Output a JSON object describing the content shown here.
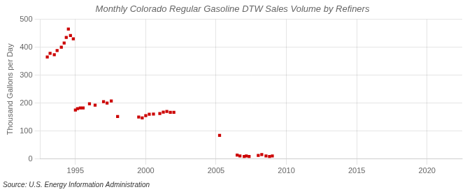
{
  "chart_data": {
    "type": "scatter",
    "title": "Monthly Colorado Regular Gasoline DTW Sales Volume by Refiners",
    "ylabel": "Thousand Gallons per Day",
    "source": "Source: U.S. Energy Information Administration",
    "color": "#cc0000",
    "marker": "square",
    "grid": true,
    "xlim": [
      1992.5,
      2022.5
    ],
    "ylim": [
      0,
      500
    ],
    "xticks": [
      1995,
      2000,
      2005,
      2010,
      2015,
      2020
    ],
    "yticks": [
      0,
      100,
      200,
      300,
      400,
      500
    ],
    "x": [
      1993.0,
      1993.2,
      1993.5,
      1993.7,
      1994.0,
      1994.2,
      1994.35,
      1994.5,
      1994.65,
      1994.85,
      1995.0,
      1995.15,
      1995.35,
      1995.55,
      1996.0,
      1996.4,
      1997.0,
      1997.25,
      1997.55,
      1998.0,
      1999.5,
      1999.75,
      2000.0,
      2000.25,
      2000.55,
      2001.0,
      2001.25,
      2001.5,
      2001.75,
      2002.0,
      2005.25,
      2006.5,
      2006.7,
      2007.0,
      2007.15,
      2007.35,
      2008.0,
      2008.25,
      2008.55,
      2008.8,
      2009.0
    ],
    "values": [
      365,
      378,
      373,
      388,
      400,
      415,
      435,
      465,
      442,
      430,
      175,
      180,
      183,
      183,
      198,
      193,
      205,
      200,
      208,
      152,
      150,
      147,
      155,
      160,
      161,
      163,
      168,
      170,
      167,
      167,
      85,
      14,
      11,
      9,
      11,
      9,
      13,
      16,
      11,
      9,
      11
    ]
  }
}
